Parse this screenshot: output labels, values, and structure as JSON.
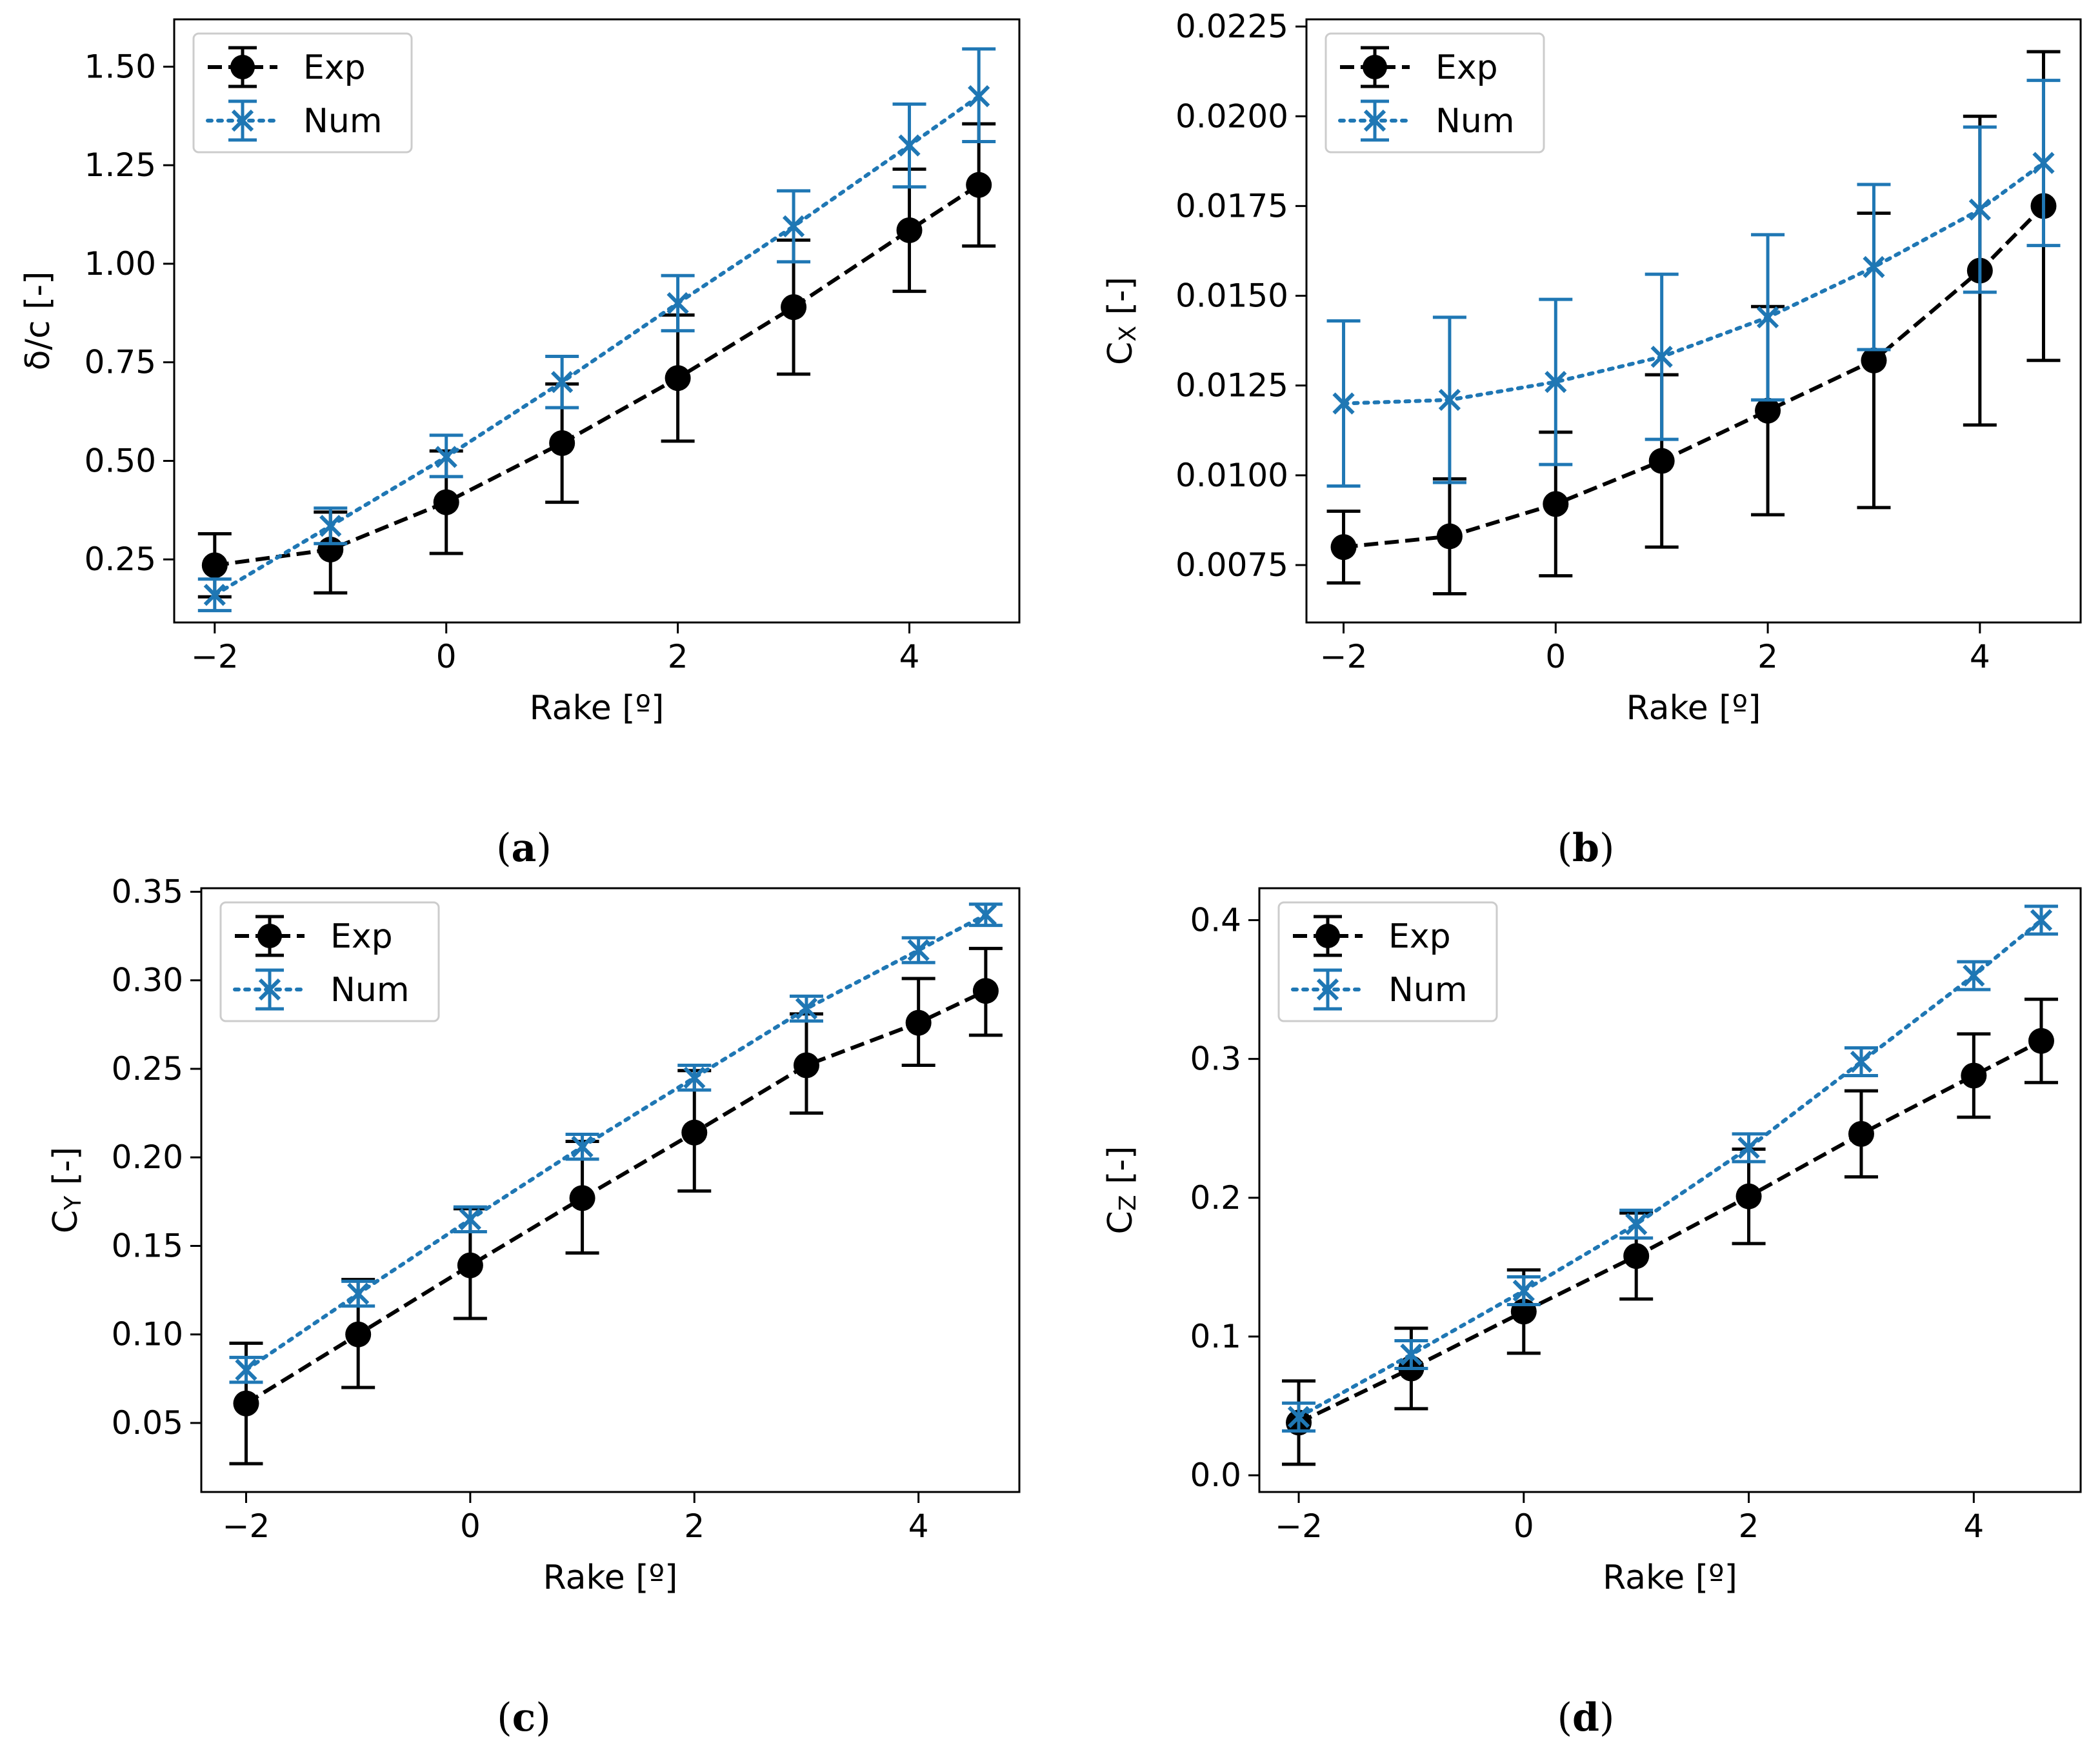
{
  "colors": {
    "exp": "#000000",
    "num": "#1f77b4",
    "legend_border": "#cccccc",
    "axes": "#000000"
  },
  "legend": {
    "exp": "Exp",
    "num": "Num"
  },
  "chart_data": [
    {
      "id": "a",
      "type": "line",
      "caption": {
        "open": "(",
        "letter": "a",
        "close": ")"
      },
      "xlabel": "Rake [º]",
      "ylabel": "δ/c [-]",
      "xlim": [
        -2.35,
        4.95
      ],
      "ylim": [
        0.09,
        1.62
      ],
      "xticks": [
        -2,
        0,
        2,
        4
      ],
      "xtick_labels": [
        "−2",
        "0",
        "2",
        "4"
      ],
      "yticks": [
        0.25,
        0.5,
        0.75,
        1.0,
        1.25,
        1.5
      ],
      "ytick_labels": [
        "0.25",
        "0.50",
        "0.75",
        "1.00",
        "1.25",
        "1.50"
      ],
      "grid": false,
      "legend_position": "upper-left",
      "x": [
        -2,
        -1,
        0,
        1,
        2,
        3,
        4,
        4.6
      ],
      "series": [
        {
          "name": "Exp",
          "style": "dashed",
          "marker": "circle",
          "values": [
            0.235,
            0.275,
            0.395,
            0.545,
            0.71,
            0.89,
            1.085,
            1.2
          ],
          "err_low": [
            0.155,
            0.165,
            0.265,
            0.395,
            0.55,
            0.72,
            0.93,
            1.045
          ],
          "err_high": [
            0.315,
            0.37,
            0.525,
            0.695,
            0.87,
            1.06,
            1.24,
            1.355
          ]
        },
        {
          "name": "Num",
          "style": "dotted",
          "marker": "x",
          "values": [
            0.16,
            0.335,
            0.51,
            0.7,
            0.9,
            1.095,
            1.3,
            1.425
          ],
          "err_low": [
            0.12,
            0.29,
            0.46,
            0.635,
            0.83,
            1.005,
            1.195,
            1.31
          ],
          "err_high": [
            0.2,
            0.38,
            0.565,
            0.765,
            0.97,
            1.185,
            1.405,
            1.545
          ]
        }
      ]
    },
    {
      "id": "b",
      "type": "line",
      "caption": {
        "open": "(",
        "letter": "b",
        "close": ")"
      },
      "xlabel": "Rake [º]",
      "ylabel": "Cx [-]",
      "ylabel_main": "C",
      "ylabel_sub": "X",
      "ylabel_rest": " [-]",
      "xlim": [
        -2.35,
        4.95
      ],
      "ylim": [
        0.0059,
        0.0227
      ],
      "xticks": [
        -2,
        0,
        2,
        4
      ],
      "xtick_labels": [
        "−2",
        "0",
        "2",
        "4"
      ],
      "yticks": [
        0.0075,
        0.01,
        0.0125,
        0.015,
        0.0175,
        0.02,
        0.0225
      ],
      "ytick_labels": [
        "0.0075",
        "0.0100",
        "0.0125",
        "0.0150",
        "0.0175",
        "0.0200",
        "0.0225"
      ],
      "grid": false,
      "legend_position": "upper-left",
      "x": [
        -2,
        -1,
        0,
        1,
        2,
        3,
        4,
        4.6
      ],
      "series": [
        {
          "name": "Exp",
          "style": "dashed",
          "marker": "circle",
          "values": [
            0.008,
            0.0083,
            0.0092,
            0.0104,
            0.0118,
            0.0132,
            0.0157,
            0.0175
          ],
          "err_low": [
            0.007,
            0.0067,
            0.0072,
            0.008,
            0.0089,
            0.0091,
            0.0114,
            0.0132
          ],
          "err_high": [
            0.009,
            0.0099,
            0.0112,
            0.0128,
            0.0147,
            0.0173,
            0.02,
            0.0218
          ]
        },
        {
          "name": "Num",
          "style": "dotted",
          "marker": "x",
          "values": [
            0.012,
            0.0121,
            0.0126,
            0.0133,
            0.0144,
            0.0158,
            0.0174,
            0.0187
          ],
          "err_low": [
            0.0097,
            0.0098,
            0.0103,
            0.011,
            0.0121,
            0.0135,
            0.0151,
            0.0164
          ],
          "err_high": [
            0.0143,
            0.0144,
            0.0149,
            0.0156,
            0.0167,
            0.0181,
            0.0197,
            0.021
          ]
        }
      ]
    },
    {
      "id": "c",
      "type": "line",
      "caption": {
        "open": "(",
        "letter": "c",
        "close": ")"
      },
      "xlabel": "Rake [º]",
      "ylabel": "Cy [-]",
      "ylabel_main": "C",
      "ylabel_sub": "Y",
      "ylabel_rest": " [-]",
      "xlim": [
        -2.4,
        4.9
      ],
      "ylim": [
        0.011,
        0.352
      ],
      "xticks": [
        -2,
        0,
        2,
        4
      ],
      "xtick_labels": [
        "−2",
        "0",
        "2",
        "4"
      ],
      "yticks": [
        0.05,
        0.1,
        0.15,
        0.2,
        0.25,
        0.3,
        0.35
      ],
      "ytick_labels": [
        "0.05",
        "0.10",
        "0.15",
        "0.20",
        "0.25",
        "0.30",
        "0.35"
      ],
      "grid": false,
      "legend_position": "upper-left",
      "x": [
        -2,
        -1,
        0,
        1,
        2,
        3,
        4,
        4.6
      ],
      "series": [
        {
          "name": "Exp",
          "style": "dashed",
          "marker": "circle",
          "values": [
            0.061,
            0.1,
            0.139,
            0.177,
            0.214,
            0.252,
            0.276,
            0.294
          ],
          "err_low": [
            0.027,
            0.07,
            0.109,
            0.146,
            0.181,
            0.225,
            0.252,
            0.269
          ],
          "err_high": [
            0.095,
            0.131,
            0.171,
            0.209,
            0.249,
            0.281,
            0.301,
            0.318
          ]
        },
        {
          "name": "Num",
          "style": "dotted",
          "marker": "x",
          "values": [
            0.08,
            0.123,
            0.165,
            0.206,
            0.245,
            0.284,
            0.317,
            0.337
          ],
          "err_low": [
            0.073,
            0.116,
            0.158,
            0.199,
            0.238,
            0.277,
            0.31,
            0.331
          ],
          "err_high": [
            0.087,
            0.13,
            0.172,
            0.213,
            0.252,
            0.291,
            0.324,
            0.343
          ]
        }
      ]
    },
    {
      "id": "d",
      "type": "line",
      "caption": {
        "open": "(",
        "letter": "d",
        "close": ")"
      },
      "xlabel": "Rake [º]",
      "ylabel": "Cz [-]",
      "ylabel_main": "C",
      "ylabel_sub": "Z",
      "ylabel_rest": " [-]",
      "xlim": [
        -2.35,
        4.95
      ],
      "ylim": [
        -0.012,
        0.423
      ],
      "xticks": [
        -2,
        0,
        2,
        4
      ],
      "xtick_labels": [
        "−2",
        "0",
        "2",
        "4"
      ],
      "yticks": [
        0.0,
        0.1,
        0.2,
        0.3,
        0.4
      ],
      "ytick_labels": [
        "0.0",
        "0.1",
        "0.2",
        "0.3",
        "0.4"
      ],
      "grid": false,
      "legend_position": "upper-left",
      "x": [
        -2,
        -1,
        0,
        1,
        2,
        3,
        4,
        4.6
      ],
      "series": [
        {
          "name": "Exp",
          "style": "dashed",
          "marker": "circle",
          "values": [
            0.038,
            0.077,
            0.118,
            0.158,
            0.201,
            0.246,
            0.288,
            0.313
          ],
          "err_low": [
            0.008,
            0.048,
            0.088,
            0.127,
            0.167,
            0.215,
            0.258,
            0.283
          ],
          "err_high": [
            0.068,
            0.106,
            0.148,
            0.189,
            0.235,
            0.277,
            0.318,
            0.343
          ]
        },
        {
          "name": "Num",
          "style": "dotted",
          "marker": "x",
          "values": [
            0.042,
            0.087,
            0.133,
            0.181,
            0.236,
            0.298,
            0.36,
            0.4
          ],
          "err_low": [
            0.032,
            0.077,
            0.123,
            0.171,
            0.226,
            0.288,
            0.35,
            0.39
          ],
          "err_high": [
            0.052,
            0.097,
            0.143,
            0.191,
            0.246,
            0.308,
            0.37,
            0.41
          ]
        }
      ]
    }
  ]
}
